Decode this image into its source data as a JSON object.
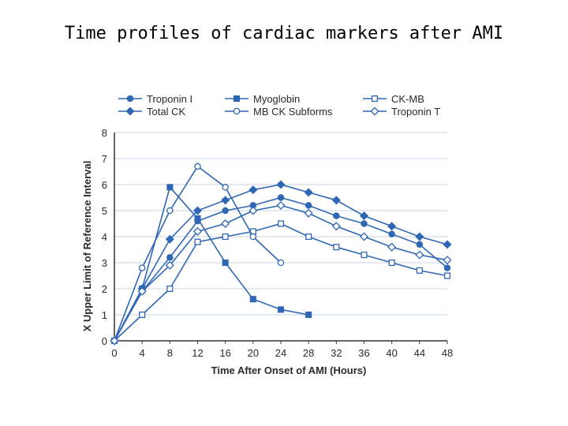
{
  "slide": {
    "title": "Time profiles of cardiac markers after AMI"
  },
  "colors": {
    "line": "#2f67b5",
    "grid": "#c9d3e6",
    "axis": "#333333"
  },
  "chart_data": {
    "type": "line",
    "title": "",
    "xlabel": "Time After Onset of AMI (Hours)",
    "ylabel": "X Upper Limit of Reference Interval",
    "xlim": [
      0,
      48
    ],
    "ylim": [
      0,
      8
    ],
    "xticks": [
      "0",
      "4",
      "8",
      "12",
      "16",
      "20",
      "24",
      "28",
      "32",
      "36",
      "40",
      "44",
      "48"
    ],
    "yticks": [
      "0",
      "1",
      "2",
      "3",
      "4",
      "5",
      "6",
      "7",
      "8"
    ],
    "grid": true,
    "legend_position": "top",
    "series": [
      {
        "name": "Troponin I",
        "marker": "circle-filled",
        "x": [
          0,
          4,
          8,
          12,
          16,
          20,
          24,
          28,
          32,
          36,
          40,
          44,
          48
        ],
        "y": [
          0,
          1.9,
          3.2,
          4.6,
          5.0,
          5.2,
          5.5,
          5.2,
          4.8,
          4.5,
          4.1,
          3.7,
          2.8
        ]
      },
      {
        "name": "Myoglobin",
        "marker": "square-filled",
        "x": [
          0,
          4,
          8,
          12,
          16,
          20,
          24,
          28
        ],
        "y": [
          0,
          2.0,
          5.9,
          4.7,
          3.0,
          1.6,
          1.2,
          1.0
        ]
      },
      {
        "name": "CK-MB",
        "marker": "square-open",
        "x": [
          0,
          4,
          8,
          12,
          16,
          20,
          24,
          28,
          32,
          36,
          40,
          44,
          48
        ],
        "y": [
          0,
          1.0,
          2.0,
          3.8,
          4.0,
          4.2,
          4.5,
          4.0,
          3.6,
          3.3,
          3.0,
          2.7,
          2.5
        ]
      },
      {
        "name": "Total CK",
        "marker": "diamond-filled",
        "x": [
          0,
          4,
          8,
          12,
          16,
          20,
          24,
          28,
          32,
          36,
          40,
          44,
          48
        ],
        "y": [
          0,
          2.0,
          3.9,
          5.0,
          5.4,
          5.8,
          6.0,
          5.7,
          5.4,
          4.8,
          4.4,
          4.0,
          3.7
        ]
      },
      {
        "name": "MB CK Subforms",
        "marker": "circle-open",
        "x": [
          0,
          4,
          8,
          12,
          16,
          20,
          24
        ],
        "y": [
          0,
          2.8,
          5.0,
          6.7,
          5.9,
          4.0,
          3.0
        ]
      },
      {
        "name": "Troponin T",
        "marker": "diamond-open",
        "x": [
          0,
          4,
          8,
          12,
          16,
          20,
          24,
          28,
          32,
          36,
          40,
          44,
          48
        ],
        "y": [
          0,
          1.9,
          2.9,
          4.2,
          4.5,
          5.0,
          5.2,
          4.9,
          4.4,
          4.0,
          3.6,
          3.3,
          3.1
        ]
      }
    ]
  }
}
